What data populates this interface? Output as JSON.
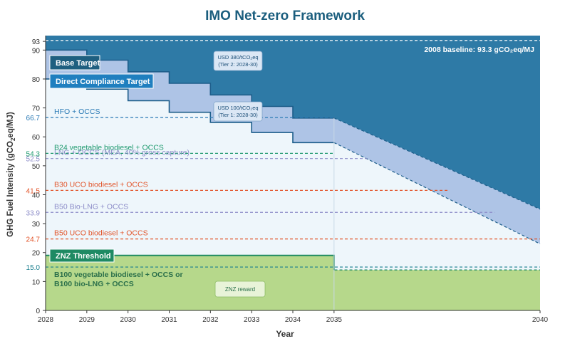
{
  "chart_data": {
    "type": "area",
    "title": "IMO Net-zero Framework",
    "xlabel": "Year",
    "ylabel_main": "GHG Fuel Intensity (gCO",
    "ylabel_sub": "2",
    "ylabel_end": "eq/MJ)",
    "x_ticks": [
      "2028",
      "2029",
      "2030",
      "2031",
      "2032",
      "2033",
      "2034",
      "2035",
      "2040"
    ],
    "x_positions": [
      2028,
      2029,
      2030,
      2031,
      2032,
      2033,
      2034,
      2035,
      2040
    ],
    "y_ticks": [
      0,
      10,
      20,
      30,
      40,
      50,
      60,
      70,
      80,
      90,
      93
    ],
    "xlim": [
      2028,
      2040
    ],
    "ylim": [
      0,
      95
    ],
    "baseline": {
      "value": 93.3,
      "label": "2008 baseline: 93.3 gCO₂eq/MJ"
    },
    "series": [
      {
        "name": "Base Target",
        "points": [
          [
            2028,
            90
          ],
          [
            2029,
            90
          ],
          [
            2029,
            86.5
          ],
          [
            2030,
            86.5
          ],
          [
            2030,
            82.5
          ],
          [
            2031,
            82.5
          ],
          [
            2031,
            78.5
          ],
          [
            2032,
            78.5
          ],
          [
            2032,
            74.5
          ],
          [
            2033,
            74.5
          ],
          [
            2033,
            70.5
          ],
          [
            2034,
            70.5
          ],
          [
            2034,
            66.5
          ],
          [
            2035,
            66.5
          ],
          [
            2040,
            35
          ]
        ]
      },
      {
        "name": "Direct Compliance Target",
        "points": [
          [
            2028,
            80
          ],
          [
            2029,
            80
          ],
          [
            2029,
            76.5
          ],
          [
            2030,
            76.5
          ],
          [
            2030,
            72.5
          ],
          [
            2031,
            72.5
          ],
          [
            2031,
            68.5
          ],
          [
            2032,
            68.5
          ],
          [
            2032,
            65
          ],
          [
            2033,
            65
          ],
          [
            2033,
            61.5
          ],
          [
            2034,
            61.5
          ],
          [
            2034,
            58
          ],
          [
            2035,
            58
          ],
          [
            2040,
            23
          ]
        ]
      },
      {
        "name": "ZNZ Threshold",
        "points": [
          [
            2028,
            19
          ],
          [
            2035,
            19
          ],
          [
            2035,
            14
          ],
          [
            2040,
            14
          ]
        ]
      }
    ],
    "fuel_lines": [
      {
        "label": "HFO + OCCS",
        "value": 66.7,
        "value_label": "66.7",
        "color": "#2a7ab5"
      },
      {
        "label": "B24 vegetable biodiesel + OCCS",
        "value": 54.3,
        "value_label": "54.3",
        "color": "#1e9a6e"
      },
      {
        "label": "LNG + OCCS (MEA, 40% gross capture)",
        "value": 52.5,
        "value_label": "52.5",
        "color": "#8c8cc8"
      },
      {
        "label": "B30 UCO biodiesel + OCCS",
        "value": 41.5,
        "value_label": "41.5",
        "color": "#e2542a"
      },
      {
        "label": "B50 Bio-LNG + OCCS",
        "value": 33.9,
        "value_label": "33.9",
        "color": "#8c8cc8"
      },
      {
        "label": "B50 UCO biodiesel + OCCS",
        "value": 24.7,
        "value_label": "24.7",
        "color": "#e2542a"
      },
      {
        "label": "",
        "value": 15.0,
        "value_label": "15.0",
        "color": "#1a7f8e"
      }
    ],
    "badges": {
      "base_target": "Base Target",
      "direct_target": "Direct Compliance Target",
      "znz_threshold": "ZNZ Threshold"
    },
    "price_boxes": {
      "tier2_line1": "USD 380/tCO₂eq",
      "tier2_line2": "(Tier 2: 2028-30)",
      "tier1_line1": "USD 100/tCO₂eq",
      "tier1_line2": "(Tier 1: 2028-30)"
    },
    "b100_line1": "B100 vegetable biodiesel + OCCS or",
    "b100_line2": "B100 bio-LNG + OCCS",
    "znz_reward": "ZNZ reward",
    "colors": {
      "penalty_dark": "#2e7aa6",
      "band": "#aec4e6",
      "compliant": "#eef6fb",
      "reward": "#b6d88b",
      "threshold": "#1e8a63",
      "badge_base": "#1e5f80",
      "badge_direct": "#1f7fbf",
      "title": "#1b5e7e",
      "axis": "#333333"
    }
  }
}
